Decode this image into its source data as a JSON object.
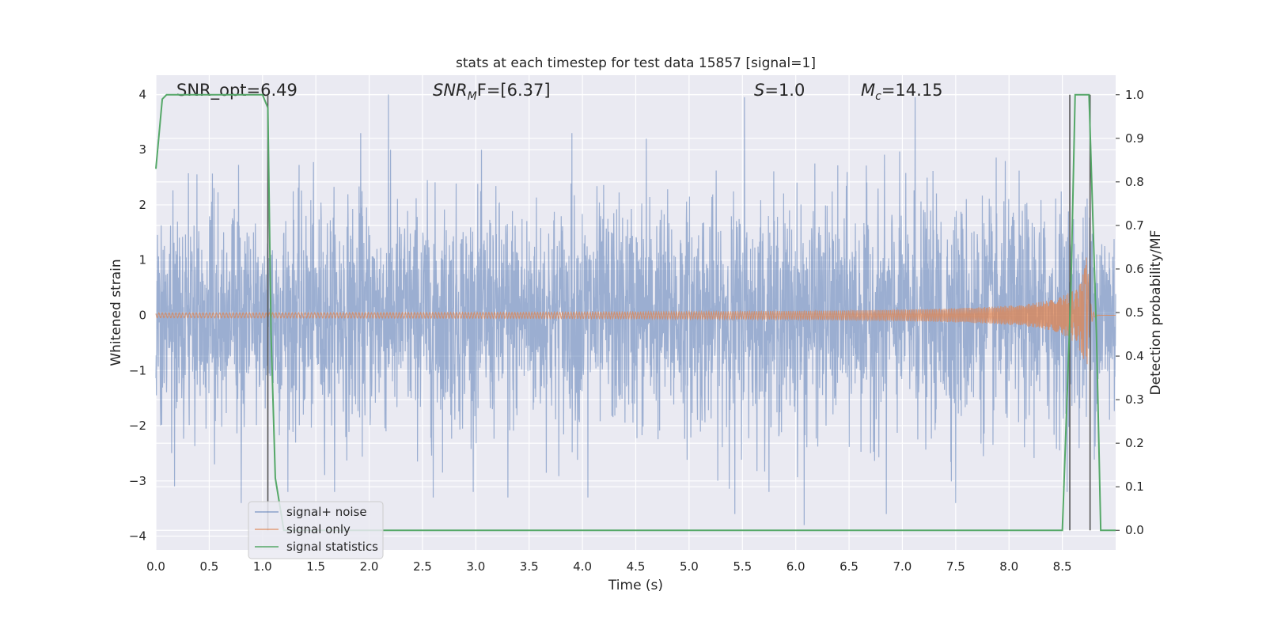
{
  "chart_data": {
    "type": "line",
    "title": "stats at each timestep for test data 15857 [signal=1]",
    "xlabel": "Time (s)",
    "ylabel": "Whitened strain",
    "y2label": "Detection probability/MF",
    "xlim": [
      0.0,
      9.0
    ],
    "ylim": [
      -4.25,
      4.35
    ],
    "y2lim": [
      -0.045,
      1.045
    ],
    "xticks": [
      "0.0",
      "0.5",
      "1.0",
      "1.5",
      "2.0",
      "2.5",
      "3.0",
      "3.5",
      "4.0",
      "4.5",
      "5.0",
      "5.5",
      "6.0",
      "6.5",
      "7.0",
      "7.5",
      "8.0",
      "8.5"
    ],
    "yticks": [
      "−4",
      "−3",
      "−2",
      "−1",
      "0",
      "1",
      "2",
      "3",
      "4"
    ],
    "y2ticks": [
      "0.0",
      "0.1",
      "0.2",
      "0.3",
      "0.4",
      "0.5",
      "0.6",
      "0.7",
      "0.8",
      "0.9",
      "1.0"
    ],
    "annotations": [
      {
        "id": "snr-opt",
        "text": "SNR_opt=6.49",
        "x": 0.2,
        "y": 4.1
      },
      {
        "id": "snr-mf-base",
        "text": "SNR",
        "italic": true,
        "x": 2.6,
        "y": 4.1
      },
      {
        "id": "snr-mf-sub",
        "text": "M",
        "x": 2.6,
        "y": 4.1
      },
      {
        "id": "snr-mf-rest",
        "text": "F=[6.37]",
        "x": 2.6,
        "y": 4.1
      },
      {
        "id": "s-label",
        "text": "S",
        "x": 5.6,
        "y": 4.1
      },
      {
        "id": "s-value",
        "text": "=1.0",
        "x": 5.6,
        "y": 4.1
      },
      {
        "id": "mc-base",
        "text": "M",
        "x": 6.6,
        "y": 4.1
      },
      {
        "id": "mc-sub",
        "text": "c",
        "x": 6.6,
        "y": 4.1
      },
      {
        "id": "mc-value",
        "text": "=14.15",
        "x": 6.6,
        "y": 4.1
      }
    ],
    "vlines": [
      1.05,
      8.57,
      8.76
    ],
    "series": [
      {
        "name": "signal+ noise",
        "color": "#4c72b0",
        "kind": "noise",
        "duration": 9.0,
        "sigma": 1.0,
        "extreme_peaks": [
          {
            "x": 2.18,
            "y": 4.0
          },
          {
            "x": 5.52,
            "y": 3.95
          },
          {
            "x": 7.12,
            "y": 3.95
          },
          {
            "x": 3.9,
            "y": 3.3
          },
          {
            "x": 1.92,
            "y": 3.3
          },
          {
            "x": 4.6,
            "y": 3.2
          },
          {
            "x": 0.8,
            "y": -3.4
          },
          {
            "x": 6.08,
            "y": -3.8
          },
          {
            "x": 5.43,
            "y": -3.6
          },
          {
            "x": 6.85,
            "y": -3.6
          },
          {
            "x": 2.6,
            "y": -3.3
          },
          {
            "x": 3.3,
            "y": -3.3
          },
          {
            "x": 7.5,
            "y": -3.4
          },
          {
            "x": 4.05,
            "y": -3.3
          },
          {
            "x": 0.55,
            "y": -2.7
          }
        ]
      },
      {
        "name": "signal only",
        "color": "#dd8452",
        "kind": "chirp",
        "merger_time": 8.73,
        "peak_amplitude": 1.1,
        "start_time": 0.0
      },
      {
        "name": "signal statistics",
        "color": "#55a868",
        "axis": "right",
        "x": [
          0.0,
          0.06,
          0.1,
          0.3,
          0.6,
          0.9,
          1.0,
          1.05,
          1.08,
          1.12,
          1.2,
          1.3,
          1.5,
          2.0,
          3.0,
          4.0,
          5.0,
          6.0,
          7.0,
          8.0,
          8.5,
          8.58,
          8.62,
          8.75,
          8.82,
          8.86,
          8.95,
          9.0
        ],
        "y": [
          0.83,
          0.99,
          1.0,
          1.0,
          1.0,
          1.0,
          1.0,
          0.97,
          0.45,
          0.12,
          0.0,
          0.0,
          0.0,
          0.0,
          0.0,
          0.0,
          0.0,
          0.0,
          0.0,
          0.0,
          0.0,
          0.55,
          1.0,
          1.0,
          0.45,
          0.0,
          0.0,
          0.0
        ]
      }
    ],
    "legend": {
      "location": "lower-left"
    },
    "grid": true,
    "style": {
      "background": "#eaeaf2",
      "grid": "#ffffff",
      "vline": "#555555"
    }
  }
}
